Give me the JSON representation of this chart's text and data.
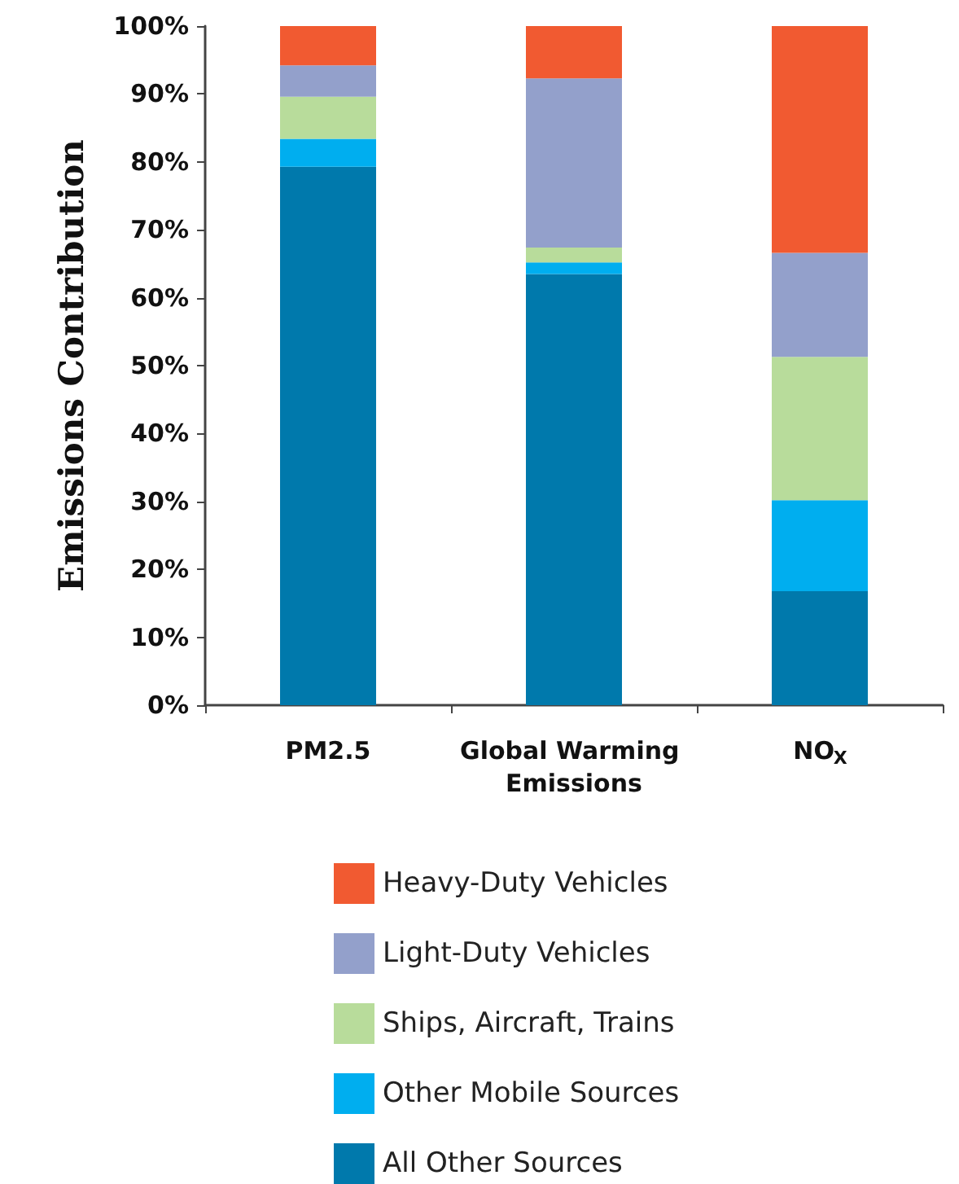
{
  "chart_data": {
    "type": "bar",
    "stacked": true,
    "ylabel": "Emissions Contribution",
    "categories": [
      "PM2.5",
      "Global Warming Emissions",
      "NO$_{X}$"
    ],
    "series": [
      {
        "name": "All Other Sources",
        "color": "#0079ac",
        "values": [
          79.3,
          63.5,
          16.8
        ]
      },
      {
        "name": "Other Mobile Sources",
        "color": "#00aeef",
        "values": [
          4.1,
          1.7,
          13.4
        ]
      },
      {
        "name": "Ships, Aircraft, Trains",
        "color": "#b8dc9b",
        "values": [
          6.2,
          2.2,
          21.1
        ]
      },
      {
        "name": "Light-Duty Vehicles",
        "color": "#93a0cb",
        "values": [
          4.6,
          24.9,
          15.3
        ]
      },
      {
        "name": "Heavy-Duty Vehicles",
        "color": "#f15a31",
        "values": [
          5.8,
          7.7,
          33.4
        ]
      }
    ],
    "ylim": [
      0,
      100
    ],
    "yticks": [
      {
        "value": 0,
        "label": "0%"
      },
      {
        "value": 10,
        "label": "10%"
      },
      {
        "value": 20,
        "label": "20%"
      },
      {
        "value": 30,
        "label": "30%"
      },
      {
        "value": 40,
        "label": "40%"
      },
      {
        "value": 50,
        "label": "50%"
      },
      {
        "value": 60,
        "label": "60%"
      },
      {
        "value": 70,
        "label": "70%"
      },
      {
        "value": 80,
        "label": "80%"
      },
      {
        "value": 90,
        "label": "90%"
      },
      {
        "value": 100,
        "label": "100%"
      }
    ],
    "grid": false,
    "legend": "bottom"
  }
}
